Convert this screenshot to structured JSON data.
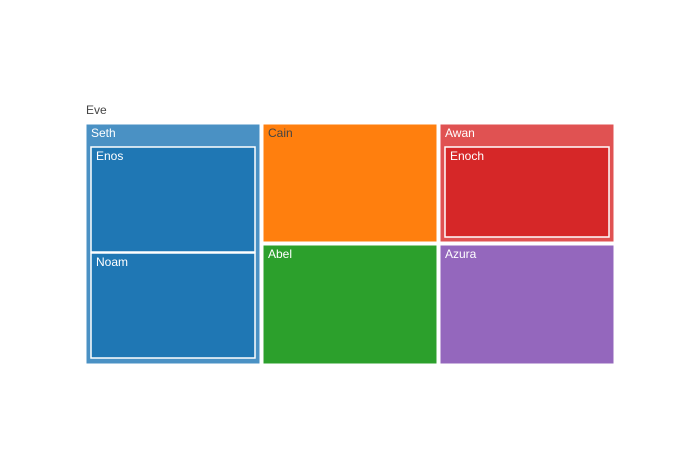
{
  "chart_data": {
    "type": "treemap",
    "root": "Eve",
    "nodes": [
      {
        "id": "Eve",
        "label": "Eve",
        "parent": "",
        "color": "#ffffff"
      },
      {
        "id": "Seth",
        "label": "Seth",
        "parent": "Eve",
        "color": "#4a91c4"
      },
      {
        "id": "Enos",
        "label": "Enos",
        "parent": "Seth",
        "color": "#1f77b4"
      },
      {
        "id": "Noam",
        "label": "Noam",
        "parent": "Seth",
        "color": "#1f77b4"
      },
      {
        "id": "Cain",
        "label": "Cain",
        "parent": "Eve",
        "color": "#ff7f0e"
      },
      {
        "id": "Abel",
        "label": "Abel",
        "parent": "Eve",
        "color": "#2ca02c"
      },
      {
        "id": "Awan",
        "label": "Awan",
        "parent": "Eve",
        "color": "#e05252"
      },
      {
        "id": "Enoch",
        "label": "Enoch",
        "parent": "Awan",
        "color": "#d62728"
      },
      {
        "id": "Azura",
        "label": "Azura",
        "parent": "Eve",
        "color": "#9467bd"
      }
    ]
  }
}
